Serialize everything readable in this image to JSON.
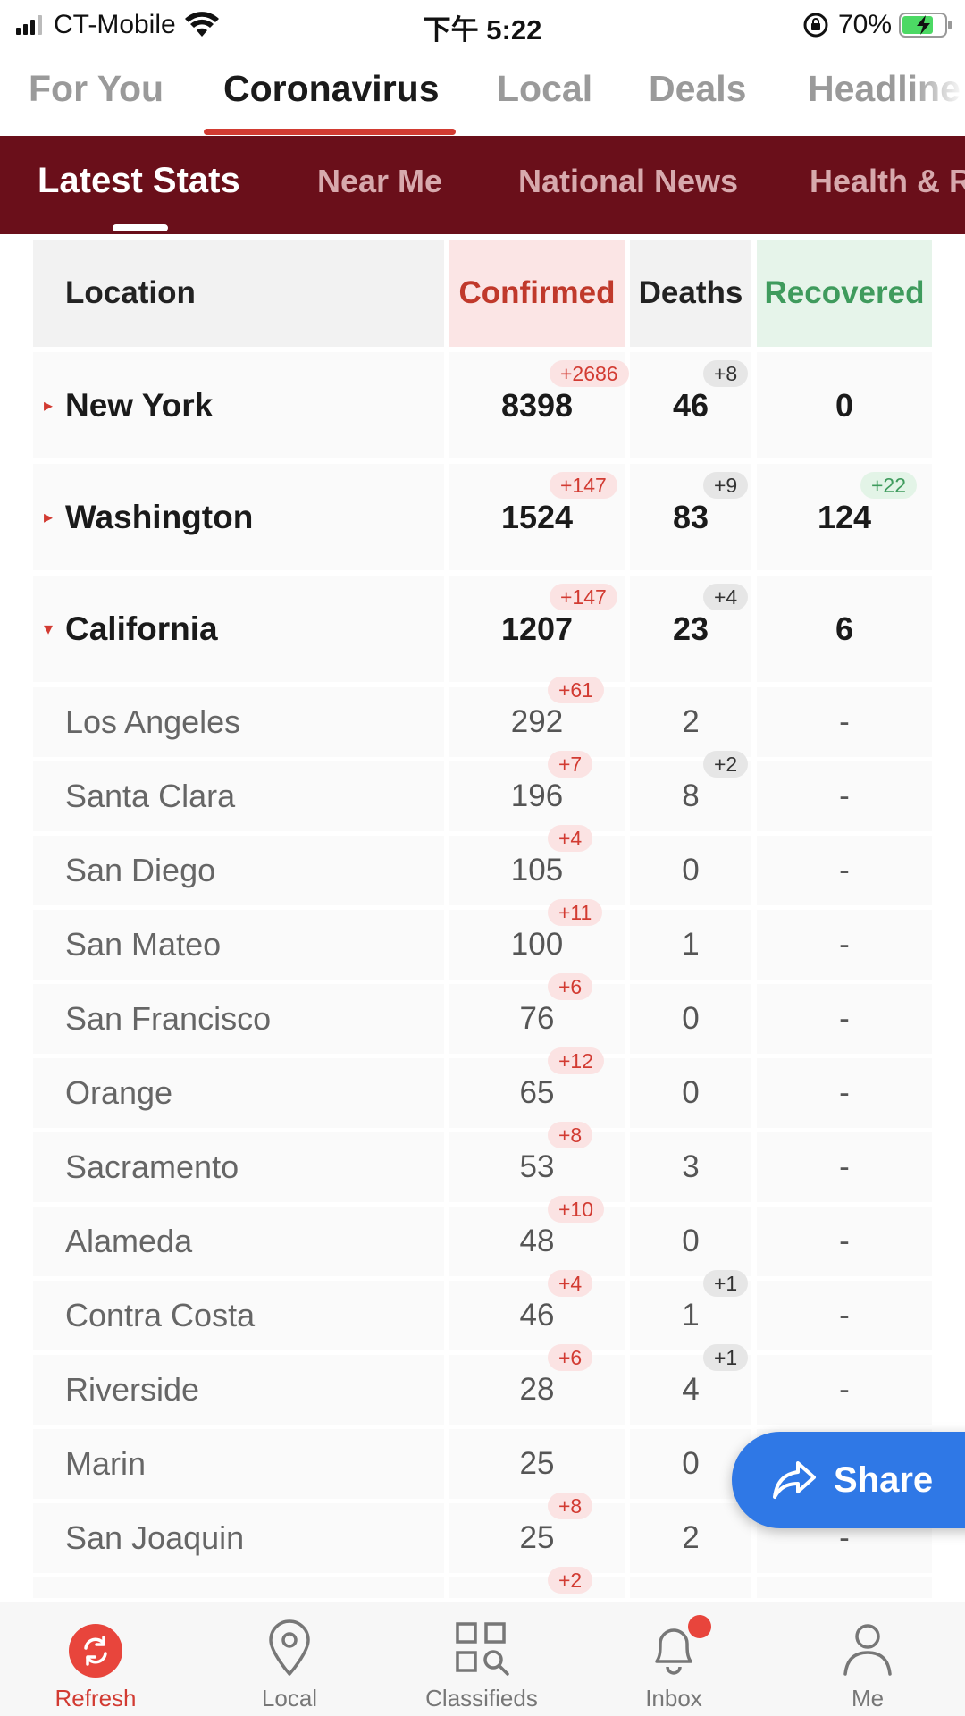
{
  "status_bar": {
    "carrier": "CT-Mobile",
    "time": "下午 5:22",
    "battery": "70%"
  },
  "top_tabs": [
    "For You",
    "Coronavirus",
    "Local",
    "Deals",
    "Headline"
  ],
  "top_tab_active": "Coronavirus",
  "sub_tabs": [
    "Latest Stats",
    "Near Me",
    "National News",
    "Health & R"
  ],
  "sub_tab_active": "Latest Stats",
  "table": {
    "headers": {
      "location": "Location",
      "confirmed": "Confirmed",
      "deaths": "Deaths",
      "recovered": "Recovered"
    },
    "rows": [
      {
        "type": "state",
        "caret": "▸",
        "name": "New York",
        "confirmed": "8398",
        "confirmed_delta": "+2686",
        "deaths": "46",
        "deaths_delta": "+8",
        "recovered": "0",
        "recovered_delta": ""
      },
      {
        "type": "state",
        "caret": "▸",
        "name": "Washington",
        "confirmed": "1524",
        "confirmed_delta": "+147",
        "deaths": "83",
        "deaths_delta": "+9",
        "recovered": "124",
        "recovered_delta": "+22"
      },
      {
        "type": "state",
        "caret": "▾",
        "name": "California",
        "confirmed": "1207",
        "confirmed_delta": "+147",
        "deaths": "23",
        "deaths_delta": "+4",
        "recovered": "6",
        "recovered_delta": ""
      },
      {
        "type": "county",
        "name": "Los Angeles",
        "confirmed": "292",
        "confirmed_delta": "+61",
        "deaths": "2",
        "deaths_delta": "",
        "recovered": "-"
      },
      {
        "type": "county",
        "name": "Santa Clara",
        "confirmed": "196",
        "confirmed_delta": "+7",
        "deaths": "8",
        "deaths_delta": "+2",
        "recovered": "-"
      },
      {
        "type": "county",
        "name": "San Diego",
        "confirmed": "105",
        "confirmed_delta": "+4",
        "deaths": "0",
        "deaths_delta": "",
        "recovered": "-"
      },
      {
        "type": "county",
        "name": "San Mateo",
        "confirmed": "100",
        "confirmed_delta": "+11",
        "deaths": "1",
        "deaths_delta": "",
        "recovered": "-"
      },
      {
        "type": "county",
        "name": "San Francisco",
        "confirmed": "76",
        "confirmed_delta": "+6",
        "deaths": "0",
        "deaths_delta": "",
        "recovered": "-"
      },
      {
        "type": "county",
        "name": "Orange",
        "confirmed": "65",
        "confirmed_delta": "+12",
        "deaths": "0",
        "deaths_delta": "",
        "recovered": "-"
      },
      {
        "type": "county",
        "name": "Sacramento",
        "confirmed": "53",
        "confirmed_delta": "+8",
        "deaths": "3",
        "deaths_delta": "",
        "recovered": "-"
      },
      {
        "type": "county",
        "name": "Alameda",
        "confirmed": "48",
        "confirmed_delta": "+10",
        "deaths": "0",
        "deaths_delta": "",
        "recovered": "-"
      },
      {
        "type": "county",
        "name": "Contra Costa",
        "confirmed": "46",
        "confirmed_delta": "+4",
        "deaths": "1",
        "deaths_delta": "+1",
        "recovered": "-"
      },
      {
        "type": "county",
        "name": "Riverside",
        "confirmed": "28",
        "confirmed_delta": "+6",
        "deaths": "4",
        "deaths_delta": "+1",
        "recovered": "-"
      },
      {
        "type": "county",
        "name": "Marin",
        "confirmed": "25",
        "confirmed_delta": "",
        "deaths": "0",
        "deaths_delta": "",
        "recovered": "-"
      },
      {
        "type": "county",
        "name": "San Joaquin",
        "confirmed": "25",
        "confirmed_delta": "+8",
        "deaths": "2",
        "deaths_delta": "",
        "recovered": "-"
      },
      {
        "type": "county",
        "name": "",
        "confirmed": "",
        "confirmed_delta": "+2",
        "deaths": "",
        "deaths_delta": "",
        "recovered": ""
      }
    ]
  },
  "share_button": {
    "label": "Share",
    "icon": "share-arrow-icon"
  },
  "bottom_nav": [
    {
      "label": "Refresh",
      "icon": "refresh-icon",
      "active": true
    },
    {
      "label": "Local",
      "icon": "location-pin-icon",
      "active": false
    },
    {
      "label": "Classifieds",
      "icon": "classifieds-grid-icon",
      "active": false
    },
    {
      "label": "Inbox",
      "icon": "bell-icon",
      "active": false,
      "badge": true
    },
    {
      "label": "Me",
      "icon": "person-icon",
      "active": false
    }
  ],
  "colors": {
    "accent_red": "#d23b32",
    "subnav_maroon": "#6a0f1a",
    "confirmed_header_bg": "#fbe5e5",
    "recovered_header_bg": "#e6f4ea",
    "recovered_green": "#3f9b5d",
    "share_blue": "#2f78e6"
  }
}
